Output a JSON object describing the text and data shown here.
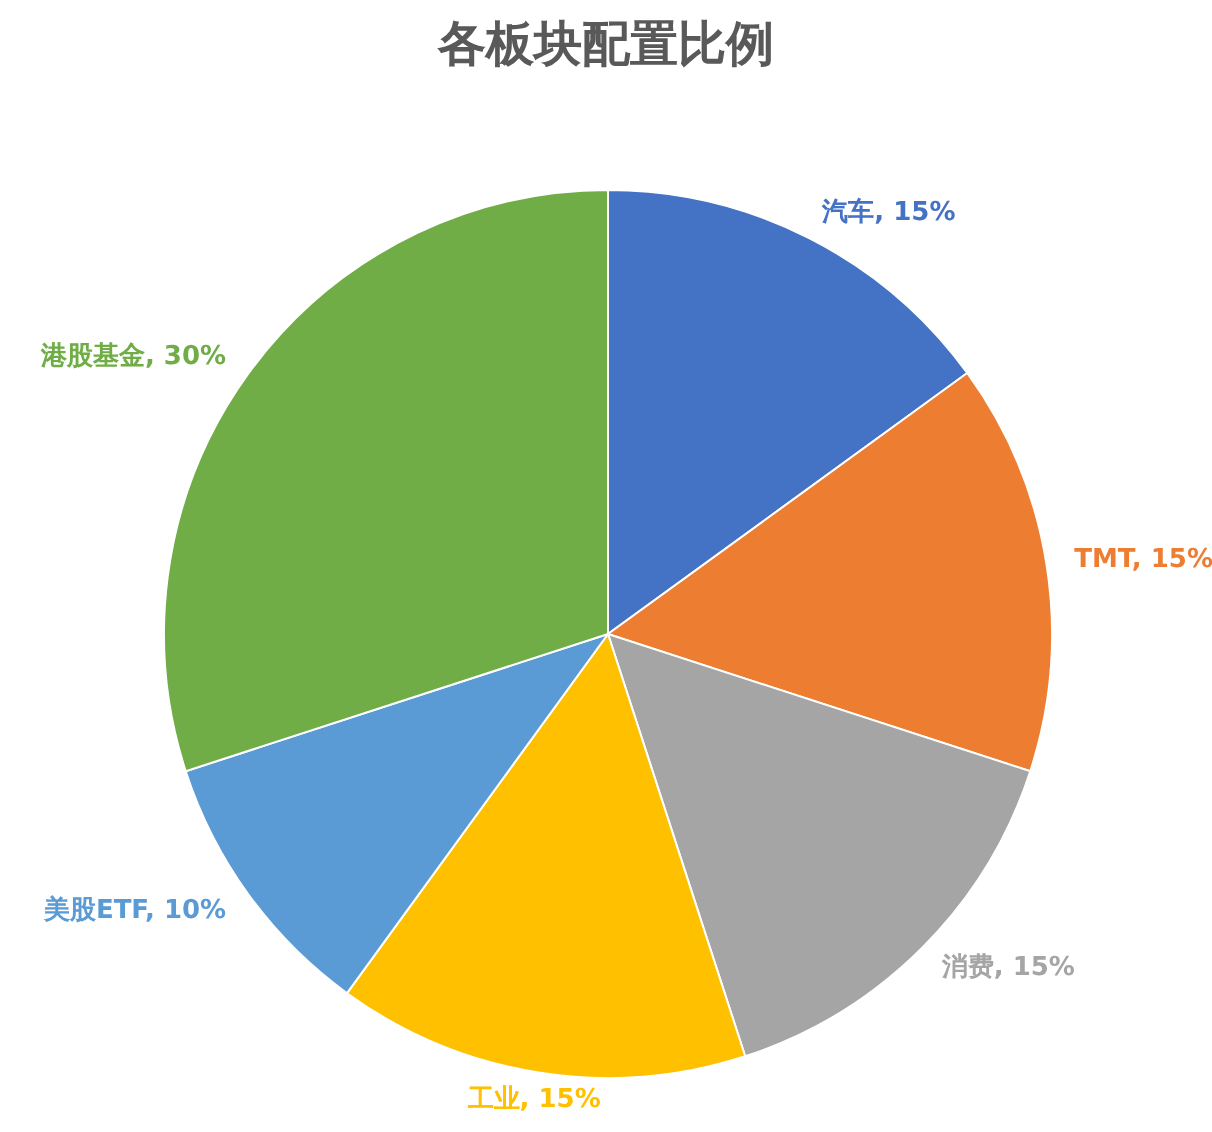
{
  "chart_data": {
    "type": "pie",
    "title": "各板块配置比例",
    "categories": [
      "汽车",
      "TMT",
      "消费",
      "工业",
      "美股ETF",
      "港股基金"
    ],
    "values": [
      15,
      15,
      15,
      15,
      10,
      30
    ],
    "value_labels": [
      "15%",
      "15%",
      "15%",
      "15%",
      "10%",
      "30%"
    ],
    "colors": [
      "#4472c4",
      "#ed7d31",
      "#a5a5a5",
      "#ffc000",
      "#5b9bd5",
      "#70ad47"
    ],
    "legend": false
  }
}
